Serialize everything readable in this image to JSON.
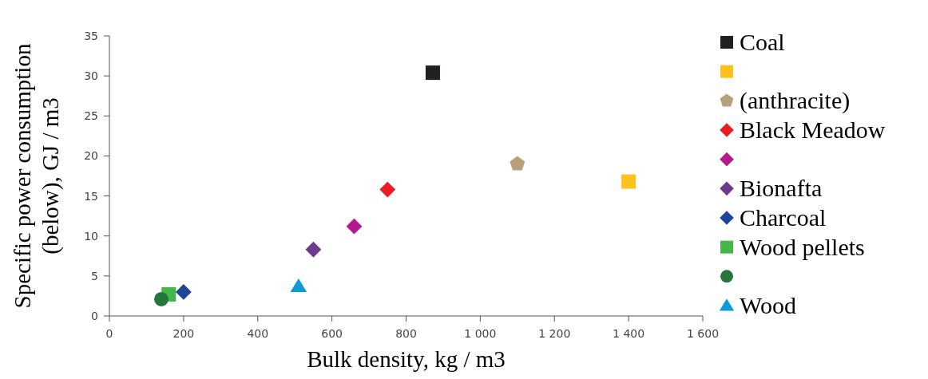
{
  "chart_data": {
    "type": "scatter",
    "xlabel": "Bulk density, kg / m3",
    "ylabel": "Specific power consumption\n(below), GJ / m3",
    "xlim": [
      0,
      1600
    ],
    "ylim": [
      0,
      35
    ],
    "xticks": [
      0,
      200,
      400,
      600,
      800,
      {
        "value": 1000,
        "label": "1 000"
      },
      {
        "value": 1200,
        "label": "1 200"
      },
      {
        "value": 1400,
        "label": "1 400"
      },
      {
        "value": 1600,
        "label": "1 600"
      }
    ],
    "yticks": [
      0,
      5,
      10,
      15,
      20,
      25,
      30,
      35
    ],
    "grid": false,
    "legend": "right",
    "series": [
      {
        "name": "Coal",
        "color": "#231f20",
        "marker": "square",
        "x": [
          872
        ],
        "values": [
          30.4
        ]
      },
      {
        "color": "#fcc31e",
        "marker": "square",
        "x": [
          1400
        ],
        "values": [
          16.8
        ]
      },
      {
        "name": "(anthracite)",
        "color": "#b9a07c",
        "x": [
          1100
        ],
        "values": [
          19.0
        ]
      },
      {
        "name": "Black Meadow",
        "color": "#ed1c24",
        "marker": "diamond",
        "x": [
          750
        ],
        "values": [
          15.8
        ]
      },
      {
        "color": "#b5198b",
        "marker": "diamond",
        "x": [
          660
        ],
        "values": [
          11.2
        ]
      },
      {
        "name": "Bionafta",
        "color": "#6d3a8c",
        "marker": "diamond",
        "x": [
          550
        ],
        "values": [
          8.3
        ]
      },
      {
        "name": "Charcoal",
        "color": "#1d4597",
        "marker": "diamond",
        "x": [
          200
        ],
        "values": [
          3.0
        ]
      },
      {
        "name": "Wood pellets",
        "color": "#45b649",
        "marker": "square",
        "x": [
          160
        ],
        "values": [
          2.7
        ]
      },
      {
        "color": "#23773c",
        "marker": "circle",
        "x": [
          140
        ],
        "values": [
          2.1
        ]
      },
      {
        "name": "Wood",
        "color": "#0e9ad7",
        "marker": "triangle",
        "x": [
          510
        ],
        "values": [
          3.7
        ]
      }
    ]
  }
}
